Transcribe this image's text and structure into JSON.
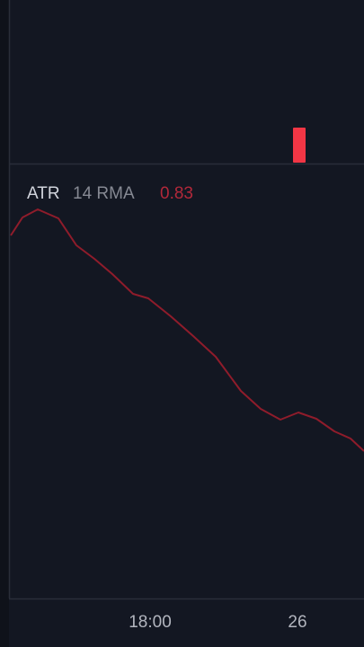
{
  "indicator": {
    "name": "ATR",
    "params": "14 RMA",
    "value": "0.83"
  },
  "time_axis": {
    "labels": [
      "18:00",
      "26"
    ]
  }
}
